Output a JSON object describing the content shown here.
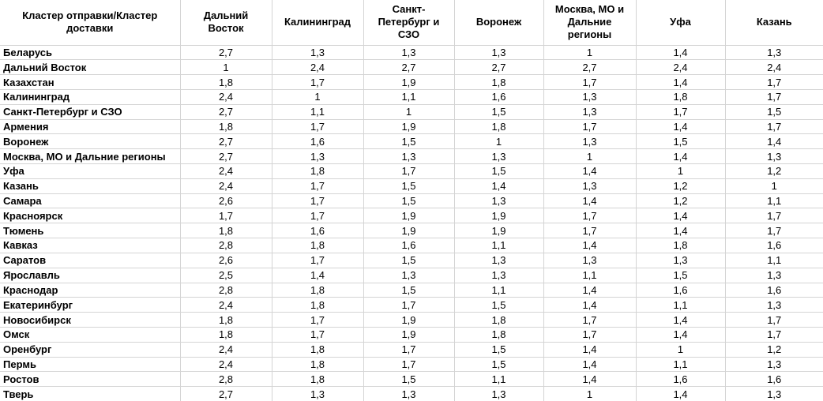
{
  "colors": {
    "grid": "#d4d4d4",
    "text": "#000000",
    "background": "#ffffff"
  },
  "chart_data": {
    "type": "table",
    "corner_header": "Кластер отправки/Кластер доставки",
    "columns": [
      "Дальний Восток",
      "Калининград",
      "Санкт-Петербург и СЗО",
      "Воронеж",
      "Москва, МО и Дальние регионы",
      "Уфа",
      "Казань"
    ],
    "rows": [
      {
        "label": "Беларусь",
        "values": [
          2.7,
          1.3,
          1.3,
          1.3,
          1,
          1.4,
          1.3
        ]
      },
      {
        "label": "Дальний Восток",
        "values": [
          1,
          2.4,
          2.7,
          2.7,
          2.7,
          2.4,
          2.4
        ]
      },
      {
        "label": "Казахстан",
        "values": [
          1.8,
          1.7,
          1.9,
          1.8,
          1.7,
          1.4,
          1.7
        ]
      },
      {
        "label": "Калининград",
        "values": [
          2.4,
          1,
          1.1,
          1.6,
          1.3,
          1.8,
          1.7
        ]
      },
      {
        "label": "Санкт-Петербург и СЗО",
        "values": [
          2.7,
          1.1,
          1,
          1.5,
          1.3,
          1.7,
          1.5
        ]
      },
      {
        "label": "Армения",
        "values": [
          1.8,
          1.7,
          1.9,
          1.8,
          1.7,
          1.4,
          1.7
        ]
      },
      {
        "label": "Воронеж",
        "values": [
          2.7,
          1.6,
          1.5,
          1,
          1.3,
          1.5,
          1.4
        ]
      },
      {
        "label": "Москва, МО и Дальние регионы",
        "values": [
          2.7,
          1.3,
          1.3,
          1.3,
          1,
          1.4,
          1.3
        ]
      },
      {
        "label": "Уфа",
        "values": [
          2.4,
          1.8,
          1.7,
          1.5,
          1.4,
          1,
          1.2
        ]
      },
      {
        "label": "Казань",
        "values": [
          2.4,
          1.7,
          1.5,
          1.4,
          1.3,
          1.2,
          1
        ]
      },
      {
        "label": "Самара",
        "values": [
          2.6,
          1.7,
          1.5,
          1.3,
          1.4,
          1.2,
          1.1
        ]
      },
      {
        "label": "Красноярск",
        "values": [
          1.7,
          1.7,
          1.9,
          1.9,
          1.7,
          1.4,
          1.7
        ]
      },
      {
        "label": "Тюмень",
        "values": [
          1.8,
          1.6,
          1.9,
          1.9,
          1.7,
          1.4,
          1.7
        ]
      },
      {
        "label": "Кавказ",
        "values": [
          2.8,
          1.8,
          1.6,
          1.1,
          1.4,
          1.8,
          1.6
        ]
      },
      {
        "label": "Саратов",
        "values": [
          2.6,
          1.7,
          1.5,
          1.3,
          1.3,
          1.3,
          1.1
        ]
      },
      {
        "label": "Ярославль",
        "values": [
          2.5,
          1.4,
          1.3,
          1.3,
          1.1,
          1.5,
          1.3
        ]
      },
      {
        "label": "Краснодар",
        "values": [
          2.8,
          1.8,
          1.5,
          1.1,
          1.4,
          1.6,
          1.6
        ]
      },
      {
        "label": "Екатеринбург",
        "values": [
          2.4,
          1.8,
          1.7,
          1.5,
          1.4,
          1.1,
          1.3
        ]
      },
      {
        "label": "Новосибирск",
        "values": [
          1.8,
          1.7,
          1.9,
          1.8,
          1.7,
          1.4,
          1.7
        ]
      },
      {
        "label": "Омск",
        "values": [
          1.8,
          1.7,
          1.9,
          1.8,
          1.7,
          1.4,
          1.7
        ]
      },
      {
        "label": "Оренбург",
        "values": [
          2.4,
          1.8,
          1.7,
          1.5,
          1.4,
          1,
          1.2
        ]
      },
      {
        "label": "Пермь",
        "values": [
          2.4,
          1.8,
          1.7,
          1.5,
          1.4,
          1.1,
          1.3
        ]
      },
      {
        "label": "Ростов",
        "values": [
          2.8,
          1.8,
          1.5,
          1.1,
          1.4,
          1.6,
          1.6
        ]
      },
      {
        "label": "Тверь",
        "values": [
          2.7,
          1.3,
          1.3,
          1.3,
          1,
          1.4,
          1.3
        ]
      }
    ],
    "number_format": "decimal-comma",
    "layout": {
      "grid": true,
      "header_bold": true,
      "row_labels_bold": true
    }
  }
}
